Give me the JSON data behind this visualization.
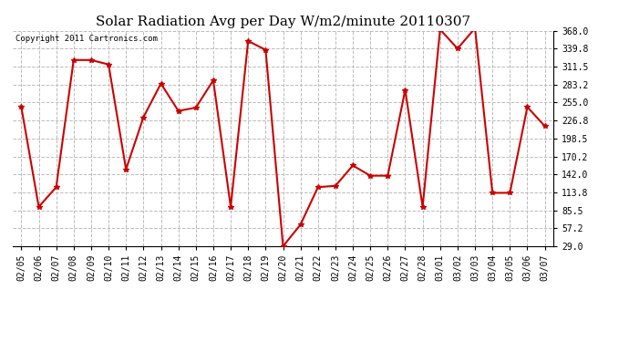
{
  "title": "Solar Radiation Avg per Day W/m2/minute 20110307",
  "copyright": "Copyright 2011 Cartronics.com",
  "dates": [
    "02/05",
    "02/06",
    "02/07",
    "02/08",
    "02/09",
    "02/10",
    "02/11",
    "02/12",
    "02/13",
    "02/14",
    "02/15",
    "02/16",
    "02/17",
    "02/18",
    "02/19",
    "02/20",
    "02/21",
    "02/22",
    "02/23",
    "02/24",
    "02/25",
    "02/26",
    "02/27",
    "02/28",
    "03/01",
    "03/02",
    "03/03",
    "03/04",
    "03/05",
    "03/06",
    "03/07"
  ],
  "values": [
    248.0,
    91.0,
    122.0,
    322.0,
    322.0,
    315.0,
    150.0,
    232.0,
    285.0,
    242.0,
    247.0,
    290.0,
    91.0,
    352.0,
    338.0,
    29.0,
    63.0,
    122.0,
    124.0,
    156.0,
    140.0,
    140.0,
    275.0,
    91.0,
    370.0,
    340.0,
    372.0,
    113.0,
    113.0,
    248.0,
    218.0
  ],
  "yticks": [
    29.0,
    57.2,
    85.5,
    113.8,
    142.0,
    170.2,
    198.5,
    226.8,
    255.0,
    283.2,
    311.5,
    339.8,
    368.0
  ],
  "ymin": 29.0,
  "ymax": 368.0,
  "line_color": "#cc0000",
  "marker": "*",
  "marker_size": 4,
  "bg_color": "#ffffff",
  "grid_color": "#bbbbbb",
  "title_fontsize": 11,
  "copyright_fontsize": 6.5,
  "tick_fontsize": 7
}
